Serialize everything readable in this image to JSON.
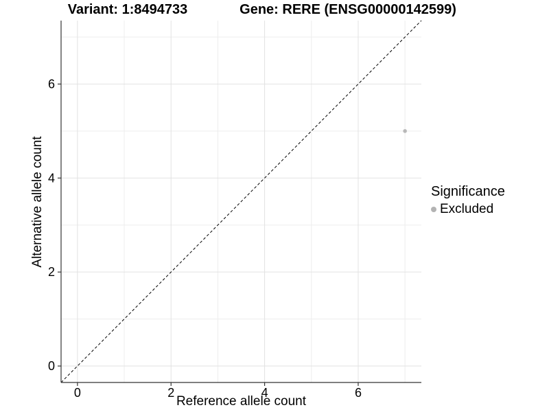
{
  "chart_data": {
    "type": "scatter",
    "variant_title": "Variant: 1:8494733",
    "gene_title": "Gene: RERE (ENSG00000142599)",
    "xlabel": "Reference allele count",
    "ylabel": "Alternative allele count",
    "x_ticks": [
      0,
      2,
      4,
      6
    ],
    "y_ticks": [
      0,
      2,
      4,
      6
    ],
    "x_minor": [
      1,
      3,
      5,
      7
    ],
    "y_minor": [
      1,
      3,
      5,
      7
    ],
    "xlim": [
      -0.35,
      7.35
    ],
    "ylim": [
      -0.35,
      7.35
    ],
    "grid": true,
    "identity_line": {
      "style": "dashed",
      "x1": -0.35,
      "y1": -0.35,
      "x2": 7.35,
      "y2": 7.35
    },
    "points": [
      {
        "x": 7,
        "y": 5,
        "series": "Excluded"
      }
    ],
    "legend": {
      "title": "Significance",
      "position": "right",
      "entries": [
        {
          "label": "Excluded",
          "color": "#b3b3b3"
        }
      ]
    },
    "colors": {
      "grid_major": "#e2e2e2",
      "grid_minor": "#ededed",
      "axis_line": "#333333",
      "dashed_line": "#000000",
      "point": "#b8b8b8",
      "text": "#000000"
    }
  }
}
